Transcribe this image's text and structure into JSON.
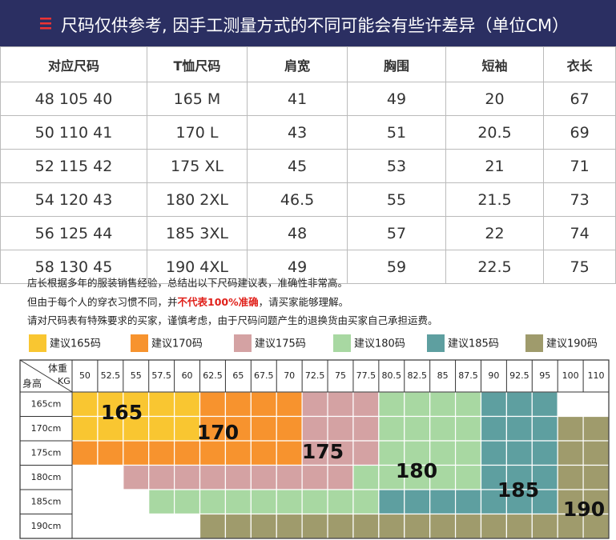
{
  "banner": {
    "title": "尺码仅供参考, 因手工测量方式的不同可能会有些许差异（单位CM）"
  },
  "table": {
    "header": [
      "对应尺码",
      "T恤尺码",
      "肩宽",
      "胸围",
      "短袖",
      "衣长"
    ],
    "rows": [
      [
        "48 105 40",
        "165 M",
        "41",
        "49",
        "20",
        "67"
      ],
      [
        "50 110 41",
        "170 L",
        "43",
        "51",
        "20.5",
        "69"
      ],
      [
        "52 115 42",
        "175 XL",
        "45",
        "53",
        "21",
        "71"
      ],
      [
        "54 120 43",
        "180 2XL",
        "46.5",
        "55",
        "21.5",
        "73"
      ],
      [
        "56 125 44",
        "185 3XL",
        "48",
        "57",
        "22",
        "74"
      ],
      [
        "58 130 45",
        "190 4XL",
        "49",
        "59",
        "22.5",
        "75"
      ]
    ]
  },
  "notes": {
    "line1": "店长根据多年的服装销售经验，总结出以下尺码建议表，准确性非常高。",
    "line2": [
      "但由于每个人的穿衣习惯不同，并",
      "不代表100%准确",
      "，请买家能够理解。"
    ],
    "line3": "请对尺码表有特殊要求的买家，谨慎考虑，由于尺码问题产生的退换货由买家自己承担运费。"
  },
  "legend": [
    {
      "label": "建议165码",
      "size": "165",
      "color": "#f9c631"
    },
    {
      "label": "建议170码",
      "size": "170",
      "color": "#f7932e"
    },
    {
      "label": "建议175码",
      "size": "175",
      "color": "#d4a2a3"
    },
    {
      "label": "建议180码",
      "size": "180",
      "color": "#a8d8a2"
    },
    {
      "label": "建议185码",
      "size": "185",
      "color": "#5e9fa0"
    },
    {
      "label": "建议190码",
      "size": "190",
      "color": "#9f9b6c"
    }
  ],
  "grid": {
    "corner": {
      "weight": "体重",
      "unit": "KG",
      "height": "身高"
    },
    "weights": [
      "50",
      "52.5",
      "55",
      "57.5",
      "60",
      "62.5",
      "65",
      "67.5",
      "70",
      "72.5",
      "75",
      "77.5",
      "80.5",
      "82.5",
      "85",
      "87.5",
      "90",
      "92.5",
      "95",
      "100",
      "110"
    ],
    "heights": [
      "165cm",
      "170cm",
      "175cm",
      "180cm",
      "185cm",
      "190cm"
    ],
    "cells": [
      [
        "165",
        "165",
        "165",
        "165",
        "165",
        "170",
        "170",
        "170",
        "170",
        "175",
        "175",
        "175",
        "180",
        "180",
        "180",
        "180",
        "185",
        "185",
        "185",
        null,
        null
      ],
      [
        "165",
        "165",
        "165",
        "165",
        "165",
        "170",
        "170",
        "170",
        "170",
        "175",
        "175",
        "175",
        "180",
        "180",
        "180",
        "180",
        "185",
        "185",
        "185",
        "190",
        "190"
      ],
      [
        "170",
        "170",
        "170",
        "170",
        "170",
        "170",
        "170",
        "170",
        "170",
        "175",
        "175",
        "175",
        "180",
        "180",
        "180",
        "180",
        "185",
        "185",
        "185",
        "190",
        "190"
      ],
      [
        null,
        null,
        "175",
        "175",
        "175",
        "175",
        "175",
        "175",
        "175",
        "175",
        "175",
        "180",
        "180",
        "180",
        "180",
        "180",
        "185",
        "185",
        "185",
        "190",
        "190"
      ],
      [
        null,
        null,
        null,
        "180",
        "180",
        "180",
        "180",
        "180",
        "180",
        "180",
        "180",
        "180",
        "185",
        "185",
        "185",
        "185",
        "185",
        "185",
        "185",
        "190",
        "190"
      ],
      [
        null,
        null,
        null,
        null,
        null,
        "190",
        "190",
        "190",
        "190",
        "190",
        "190",
        "190",
        "190",
        "190",
        "190",
        "190",
        "190",
        "190",
        "190",
        "190",
        "190"
      ]
    ]
  }
}
